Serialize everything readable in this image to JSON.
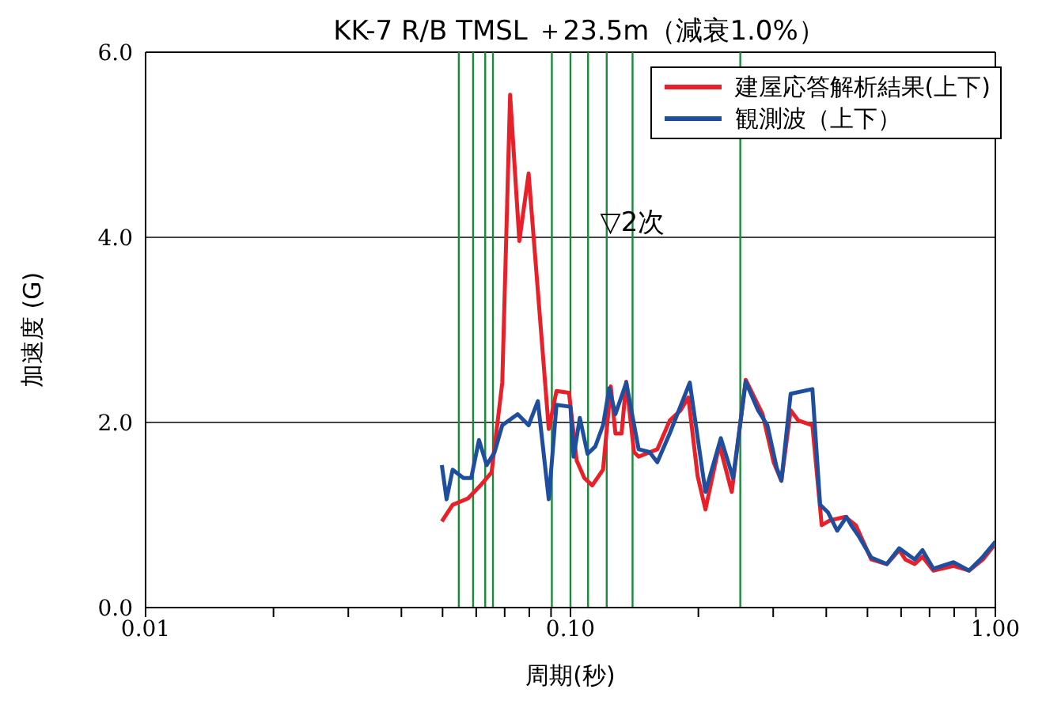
{
  "chart_data": {
    "type": "line",
    "title": "KK-7 R/B TMSL ＋23.5m（減衰1.0%）",
    "xlabel": "周期(秒)",
    "ylabel": "加速度 (G)",
    "log": "x",
    "xlim": [
      0.01,
      1.0
    ],
    "ylim": [
      0,
      6
    ],
    "xticks": [
      {
        "value": 0.01,
        "label": "0.01"
      },
      {
        "value": 0.02,
        "label": null
      },
      {
        "value": 0.03,
        "label": null
      },
      {
        "value": 0.04,
        "label": null
      },
      {
        "value": 0.05,
        "label": null
      },
      {
        "value": 0.06,
        "label": null
      },
      {
        "value": 0.07,
        "label": null
      },
      {
        "value": 0.08,
        "label": null
      },
      {
        "value": 0.09,
        "label": null
      },
      {
        "value": 0.1,
        "label": "0.10"
      },
      {
        "value": 0.2,
        "label": null
      },
      {
        "value": 0.3,
        "label": null
      },
      {
        "value": 0.4,
        "label": null
      },
      {
        "value": 0.5,
        "label": null
      },
      {
        "value": 0.6,
        "label": null
      },
      {
        "value": 0.7,
        "label": null
      },
      {
        "value": 0.8,
        "label": null
      },
      {
        "value": 0.9,
        "label": null
      },
      {
        "value": 1.0,
        "label": "1.00"
      }
    ],
    "yticks": [
      {
        "value": 0,
        "label": "0.0"
      },
      {
        "value": 2,
        "label": "2.0"
      },
      {
        "value": 4,
        "label": "4.0"
      },
      {
        "value": 6,
        "label": "6.0"
      }
    ],
    "grid": "y",
    "legend": "top right",
    "marker": "none",
    "line_style": "solid",
    "series": [
      {
        "name": "建屋応答解析結果(上下)",
        "color": "#e8202a",
        "x": [
          0.0498,
          0.0528,
          0.0574,
          0.0614,
          0.0652,
          0.0691,
          0.0721,
          0.0758,
          0.0797,
          0.0889,
          0.0927,
          0.0992,
          0.1034,
          0.1078,
          0.1125,
          0.1193,
          0.1244,
          0.1276,
          0.1319,
          0.1353,
          0.1411,
          0.1447,
          0.1601,
          0.1712,
          0.1816,
          0.1894,
          0.1992,
          0.2078,
          0.2241,
          0.2397,
          0.2585,
          0.2832,
          0.3007,
          0.3136,
          0.3298,
          0.344,
          0.371,
          0.3902,
          0.4069,
          0.4426,
          0.4694,
          0.5105,
          0.5553,
          0.5938,
          0.614,
          0.6459,
          0.6738,
          0.7145,
          0.797,
          0.867,
          0.935,
          1.0
        ],
        "values": [
          0.93,
          1.11,
          1.18,
          1.32,
          1.46,
          2.43,
          5.54,
          3.96,
          4.69,
          1.93,
          2.34,
          2.32,
          1.59,
          1.4,
          1.32,
          1.49,
          2.39,
          1.88,
          1.88,
          2.44,
          1.68,
          1.63,
          1.71,
          2.02,
          2.13,
          2.27,
          1.42,
          1.06,
          1.76,
          1.25,
          2.46,
          2.09,
          1.57,
          1.37,
          2.13,
          2.02,
          1.97,
          0.89,
          0.94,
          0.98,
          0.89,
          0.52,
          0.47,
          0.62,
          0.52,
          0.47,
          0.55,
          0.4,
          0.45,
          0.4,
          0.52,
          0.69
        ]
      },
      {
        "name": "観測波（上下）",
        "color": "#1f4e9f",
        "x": [
          0.0498,
          0.0511,
          0.0528,
          0.056,
          0.0584,
          0.0609,
          0.0635,
          0.0663,
          0.0691,
          0.0751,
          0.0797,
          0.0838,
          0.0889,
          0.0927,
          0.1,
          0.1017,
          0.1052,
          0.1097,
          0.1144,
          0.1193,
          0.1234,
          0.1276,
          0.1353,
          0.1447,
          0.1535,
          0.1601,
          0.1712,
          0.1909,
          0.2078,
          0.2259,
          0.2414,
          0.2585,
          0.2764,
          0.2907,
          0.3058,
          0.3136,
          0.3298,
          0.371,
          0.3869,
          0.4035,
          0.4244,
          0.4463,
          0.4576,
          0.4771,
          0.5105,
          0.5553,
          0.5938,
          0.6459,
          0.6738,
          0.7145,
          0.797,
          0.867,
          0.935,
          1.0
        ],
        "values": [
          1.54,
          1.17,
          1.49,
          1.4,
          1.4,
          1.81,
          1.54,
          1.68,
          1.97,
          2.09,
          1.97,
          2.23,
          1.17,
          2.19,
          2.17,
          1.63,
          2.05,
          1.66,
          1.74,
          1.97,
          2.37,
          2.09,
          2.43,
          1.71,
          1.68,
          1.57,
          1.88,
          2.43,
          1.25,
          1.83,
          1.4,
          2.44,
          2.13,
          1.97,
          1.51,
          1.37,
          2.31,
          2.36,
          1.11,
          1.03,
          0.83,
          0.98,
          0.89,
          0.77,
          0.54,
          0.47,
          0.64,
          0.52,
          0.62,
          0.42,
          0.49,
          0.4,
          0.55,
          0.71
        ]
      }
    ],
    "ref_lines": [
      {
        "axis": "x",
        "value": 0.0546,
        "color": "#1a8a3a"
      },
      {
        "axis": "x",
        "value": 0.059,
        "color": "#1a8a3a"
      },
      {
        "axis": "x",
        "value": 0.063,
        "color": "#1a8a3a"
      },
      {
        "axis": "x",
        "value": 0.0657,
        "color": "#1a8a3a"
      },
      {
        "axis": "x",
        "value": 0.0904,
        "color": "#1a8a3a"
      },
      {
        "axis": "x",
        "value": 0.1,
        "color": "#1a8a3a"
      },
      {
        "axis": "x",
        "value": 0.11,
        "color": "#1a8a3a"
      },
      {
        "axis": "x",
        "value": 0.1217,
        "color": "#1a8a3a"
      },
      {
        "axis": "x",
        "value": 0.14,
        "color": "#1a8a3a"
      },
      {
        "axis": "x",
        "value": 0.251,
        "color": "#1a8a3a"
      }
    ],
    "annotations": [
      {
        "text": "▽2次",
        "x": 0.14,
        "y": 4.0
      }
    ]
  }
}
